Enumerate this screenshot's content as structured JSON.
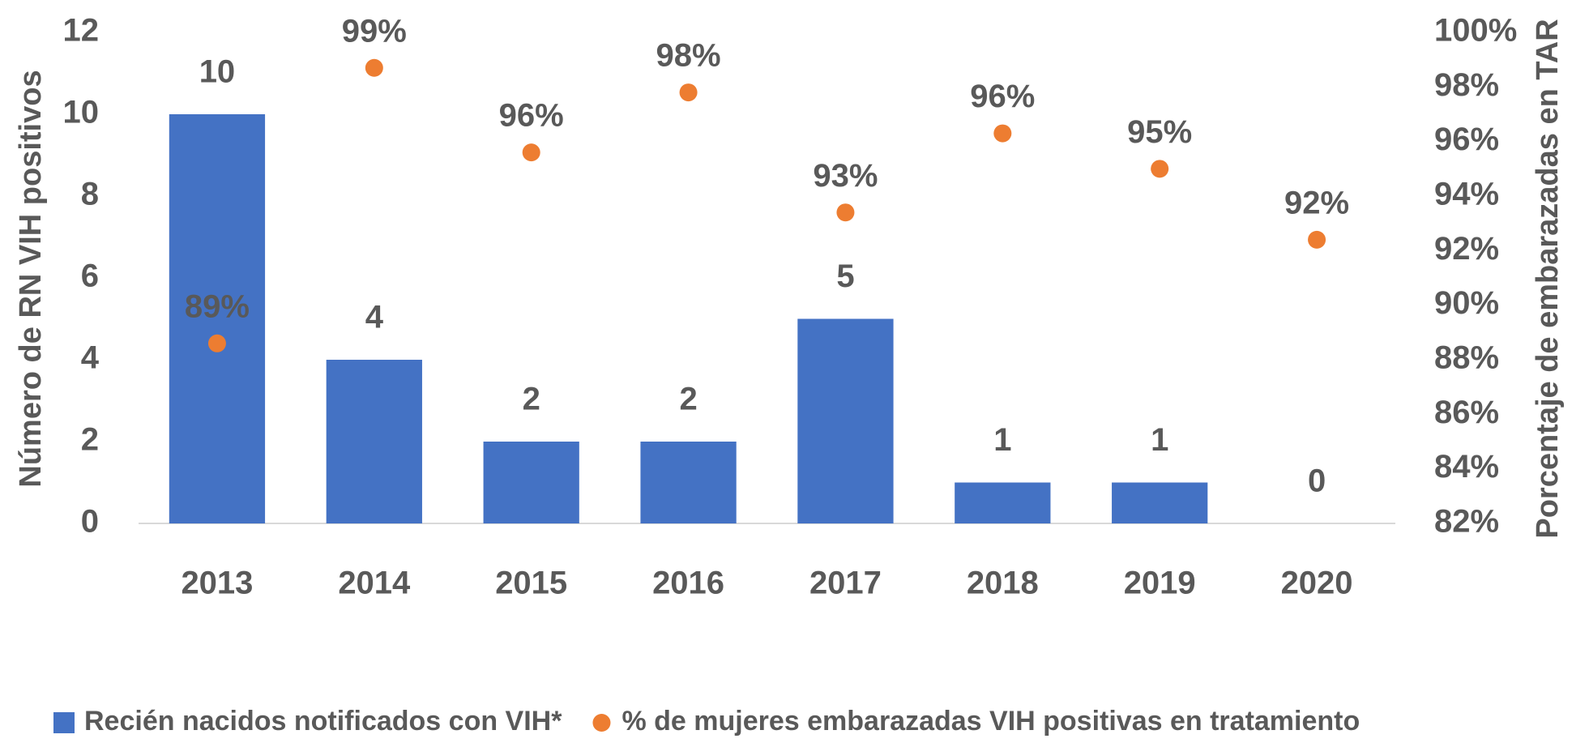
{
  "chart_data": {
    "type": "combo",
    "categories": [
      "2013",
      "2014",
      "2015",
      "2016",
      "2017",
      "2018",
      "2019",
      "2020"
    ],
    "series": [
      {
        "name": "Recién nacidos notificados con VIH*",
        "type": "bar",
        "color": "#4472c4",
        "values": [
          10,
          4,
          2,
          2,
          5,
          1,
          1,
          0
        ]
      },
      {
        "name": "% de mujeres embarazadas VIH positivas en tratamiento",
        "type": "scatter",
        "color": "#ed7d31",
        "axis": "y2",
        "values": [
          88.6,
          98.7,
          95.6,
          97.8,
          93.4,
          96.3,
          95.0,
          92.4
        ],
        "value_labels": [
          "89%",
          "99%",
          "96%",
          "98%",
          "93%",
          "96%",
          "95%",
          "92%"
        ]
      }
    ],
    "y_label": "Número de RN  VIH positivos",
    "y2_label": "Porcentaje de embarazadas en TAR",
    "ylim": [
      0,
      12
    ],
    "yticks": [
      0,
      2,
      4,
      6,
      8,
      10,
      12
    ],
    "y2lim": [
      82,
      100
    ],
    "y2ticks": [
      {
        "value": 82,
        "label": "82%"
      },
      {
        "value": 84,
        "label": "84%"
      },
      {
        "value": 86,
        "label": "86%"
      },
      {
        "value": 88,
        "label": "88%"
      },
      {
        "value": 90,
        "label": "90%"
      },
      {
        "value": 92,
        "label": "92%"
      },
      {
        "value": 94,
        "label": "94%"
      },
      {
        "value": 96,
        "label": "96%"
      },
      {
        "value": 98,
        "label": "98%"
      },
      {
        "value": 100,
        "label": "100%"
      }
    ],
    "grid": false,
    "legend": "bottom"
  }
}
